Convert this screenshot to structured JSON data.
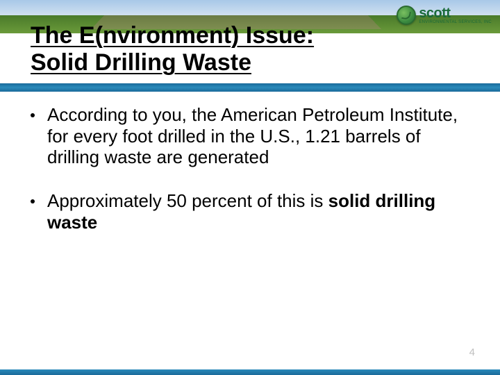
{
  "colors": {
    "title": "#000000",
    "body": "#000000",
    "blue_bar": "#1a6a9a",
    "page_num": "#bfbfbf",
    "logo_green": "#1a6a3a"
  },
  "typography": {
    "title_fontsize": 34,
    "body_fontsize": 26,
    "logo_brand_fontsize": 20,
    "page_num_fontsize": 15,
    "font_family": "Arial"
  },
  "header": {
    "logo_brand": "scott",
    "logo_subtext": "ENVIRONMENTAL SERVICES, INC"
  },
  "title": {
    "line1": "The E(nvironment) Issue:",
    "line2": "Solid Drilling Waste"
  },
  "bullets": [
    {
      "text_parts": [
        {
          "t": "According to you, the American Petroleum Institute, for every foot drilled in the U.S., 1.21 barrels of drilling waste are generated",
          "bold": false
        }
      ]
    },
    {
      "text_parts": [
        {
          "t": "Approximately 50 percent of this is ",
          "bold": false
        },
        {
          "t": "solid drilling waste",
          "bold": true
        }
      ]
    }
  ],
  "page_number": "4"
}
